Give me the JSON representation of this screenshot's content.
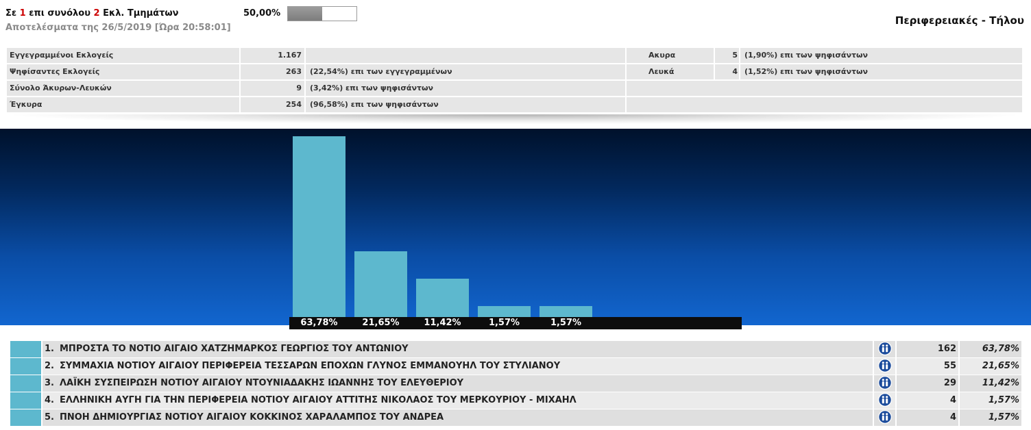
{
  "header": {
    "sections_prefix": "Σε",
    "sections_counted": "1",
    "sections_middle": "επι συνόλου",
    "sections_total": "2",
    "sections_suffix": "Εκλ. Τμημάτων",
    "progress_label": "50,00%",
    "progress_fraction": 0.5,
    "timestamp": "Αποτελέσματα της 26/5/2019 [Ώρα 20:58:01]",
    "title": "Περιφερειακές - Τήλου"
  },
  "stats": {
    "main": [
      {
        "label": "Εγγεγραμμένοι Εκλογείς",
        "value": "1.167",
        "note": ""
      },
      {
        "label": "Ψηφίσαντες Εκλογείς",
        "value": "263",
        "note": "(22,54%) επι των εγγεγραμμένων"
      },
      {
        "label": "Σύνολο Άκυρων-Λευκών",
        "value": "9",
        "note": "(3,42%) επι των ψηφισάντων"
      },
      {
        "label": "Έγκυρα",
        "value": "254",
        "note": "(96,58%) επι των ψηφισάντων"
      }
    ],
    "side": [
      {
        "label": "Ακυρα",
        "value": "5",
        "note": "(1,90%) επι των ψηφισάντων"
      },
      {
        "label": "Λευκά",
        "value": "4",
        "note": "(1,52%) επι των ψηφισάντων"
      }
    ]
  },
  "chart_data": {
    "type": "bar",
    "values": [
      63.78,
      21.65,
      11.42,
      1.57,
      1.57
    ],
    "value_labels": [
      "63,78%",
      "21,65%",
      "11,42%",
      "1,57%",
      "1,57%"
    ],
    "grid": false
  },
  "candidates": [
    {
      "rank": "1.",
      "name": "ΜΠΡΟΣΤΑ ΤΟ ΝΟΤΙΟ ΑΙΓΑΙΟ ΧΑΤΖΗΜΑΡΚΟΣ ΓΕΩΡΓΙΟΣ ΤΟΥ ΑΝΤΩΝΙΟΥ",
      "votes": "162",
      "percent": "63,78%",
      "icon": "people-icon"
    },
    {
      "rank": "2.",
      "name": "ΣΥΜΜΑΧΙΑ ΝΟΤΙΟΥ ΑΙΓΑΙΟΥ ΠΕΡΙΦΕΡΕΙΑ ΤΕΣΣΑΡΩΝ ΕΠΟΧΩΝ ΓΛΥΝΟΣ ΕΜΜΑΝΟΥΗΛ ΤΟΥ ΣΤΥΛΙΑΝΟΥ",
      "votes": "55",
      "percent": "21,65%",
      "icon": "people-icon"
    },
    {
      "rank": "3.",
      "name": "ΛΑΪΚΗ ΣΥΣΠΕΙΡΩΣΗ ΝΟΤΙΟΥ ΑΙΓΑΙΟΥ ΝΤΟΥΝΙΑΔΑΚΗΣ ΙΩΑΝΝΗΣ ΤΟΥ ΕΛΕΥΘΕΡΙΟΥ",
      "votes": "29",
      "percent": "11,42%",
      "icon": "people-icon"
    },
    {
      "rank": "4.",
      "name": "ΕΛΛΗΝΙΚΗ ΑΥΓΗ ΓΙΑ ΤΗΝ ΠΕΡΙΦΕΡΕΙΑ ΝΟΤΙΟΥ ΑΙΓΑΙΟΥ ΑΤΤΙΤΗΣ ΝΙΚΟΛΑΟΣ ΤΟΥ ΜΕΡΚΟΥΡΙΟΥ - ΜΙΧΑΗΛ",
      "votes": "4",
      "percent": "1,57%",
      "icon": "people-icon"
    },
    {
      "rank": "5.",
      "name": "ΠΝΟΗ ΔΗΜΙΟΥΡΓΙΑΣ ΝΟΤΙΟΥ ΑΙΓΑΙΟΥ ΚΟΚΚΙΝΟΣ ΧΑΡΑΛΑΜΠΟΣ ΤΟΥ ΑΝΔΡΕΑ",
      "votes": "4",
      "percent": "1,57%",
      "icon": "people-icon"
    }
  ],
  "colors": {
    "bar": "#5db8ce",
    "highlight_number": "#cc0000",
    "chart_bg_top": "#00112b",
    "chart_bg_bottom": "#1266cf",
    "people_icon": "#1c4c9c"
  }
}
